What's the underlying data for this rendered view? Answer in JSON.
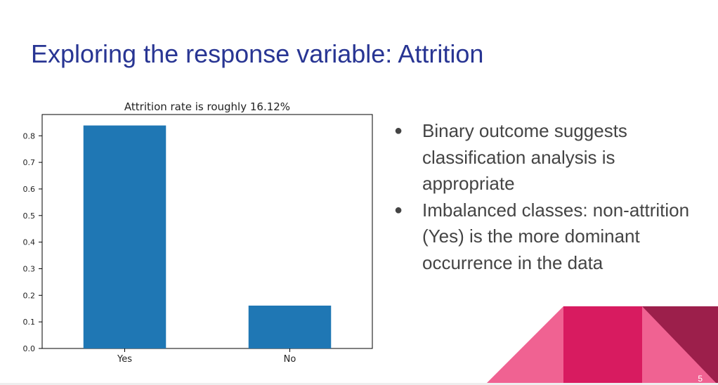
{
  "slide": {
    "title": "Exploring the response variable: Attrition",
    "page_number": "5",
    "bullets": [
      "Binary outcome suggests classification analysis is appropriate",
      "Imbalanced classes: non-attrition (Yes) is the more dominant occurrence in the data"
    ]
  },
  "colors": {
    "title": "#283593",
    "bar": "#1f77b4",
    "accent_light": "#f06292",
    "accent_mid": "#d81b60",
    "accent_dark": "#9c1f4b"
  },
  "chart_data": {
    "type": "bar",
    "title": "Attrition rate is roughly 16.12%",
    "categories": [
      "Yes",
      "No"
    ],
    "values": [
      0.8388,
      0.1612
    ],
    "xlabel": "",
    "ylabel": "",
    "ylim": [
      0,
      0.88
    ],
    "yticks": [
      "0.0",
      "0.1",
      "0.2",
      "0.3",
      "0.4",
      "0.5",
      "0.6",
      "0.7",
      "0.8"
    ],
    "grid": false,
    "legend": "none"
  }
}
